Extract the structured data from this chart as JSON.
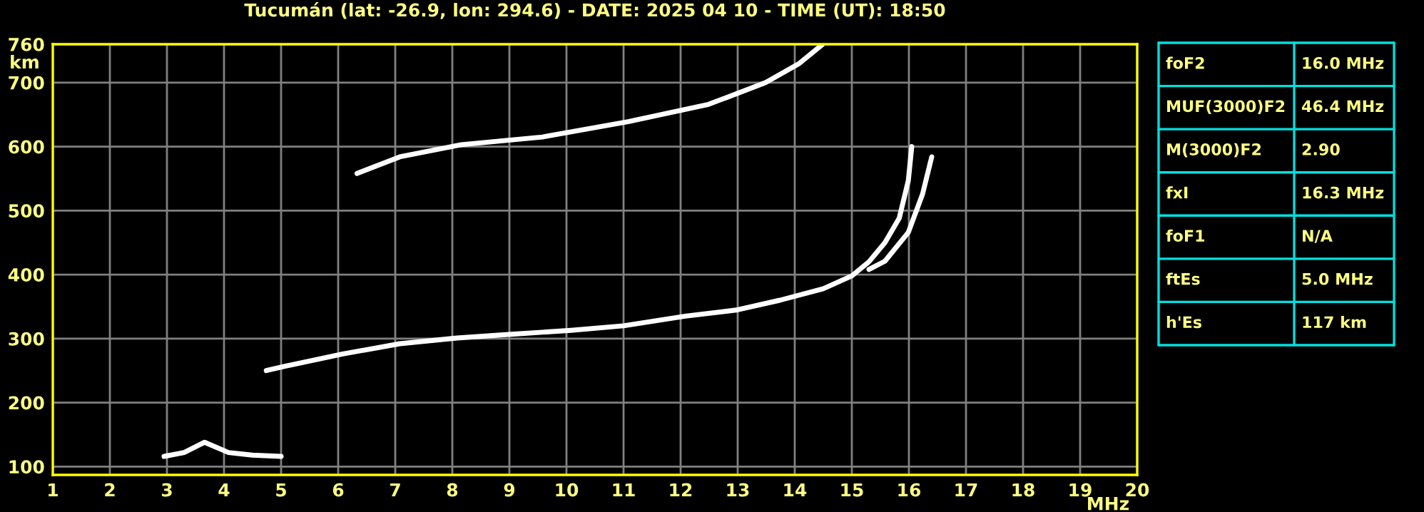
{
  "chart_data": {
    "type": "line",
    "title": "Tucumán (lat: -26.9, lon: 294.6) - DATE: 2025 04 10 - TIME (UT): 18:50",
    "xlabel": "MHz",
    "ylabel": "km",
    "xlim": [
      1,
      20
    ],
    "xticks": [
      1,
      2,
      3,
      4,
      5,
      6,
      7,
      8,
      9,
      10,
      11,
      12,
      13,
      14,
      15,
      16,
      17,
      18,
      19,
      20
    ],
    "ylim": [
      87,
      760
    ],
    "yticks": [
      100,
      200,
      300,
      400,
      500,
      600,
      700,
      760
    ],
    "grid": true,
    "marker": "none",
    "line_style": "solid",
    "series": [
      {
        "color": "#ffffff",
        "x": [
          2.95,
          3.3,
          3.66,
          4.08,
          4.5,
          5.0
        ],
        "values": [
          116,
          122,
          138,
          122,
          118,
          116
        ]
      },
      {
        "color": "#ffffff",
        "x": [
          4.74,
          5.08,
          6.08,
          7.08,
          8.08,
          9.08,
          10.08,
          11.0,
          12.08,
          13.0,
          13.74,
          14.5,
          15.0,
          15.3,
          15.58,
          15.83,
          15.99,
          16.05
        ],
        "values": [
          250,
          257,
          276,
          292,
          301,
          307,
          313,
          320,
          335,
          345,
          360,
          378,
          398,
          420,
          450,
          488,
          547,
          600
        ]
      },
      {
        "color": "#ffffff",
        "x": [
          15.3,
          15.58,
          15.99,
          16.24,
          16.4
        ],
        "values": [
          408,
          421,
          466,
          526,
          584
        ]
      },
      {
        "color": "#ffffff",
        "x": [
          6.33,
          7.08,
          8.16,
          9.58,
          11.08,
          12.49,
          13.49,
          14.08,
          14.49
        ],
        "values": [
          558,
          584,
          603,
          615,
          639,
          666,
          700,
          730,
          760
        ]
      }
    ],
    "annotations": [
      "foF2",
      "16.0 MHz",
      "MUF(3000)F2",
      "46.4 MHz",
      "M(3000)F2",
      "2.90",
      "fxI",
      "16.3 MHz",
      "foF1",
      "N/A",
      "ftEs",
      "5.0 MHz",
      "h'Es",
      "117 km"
    ]
  }
}
